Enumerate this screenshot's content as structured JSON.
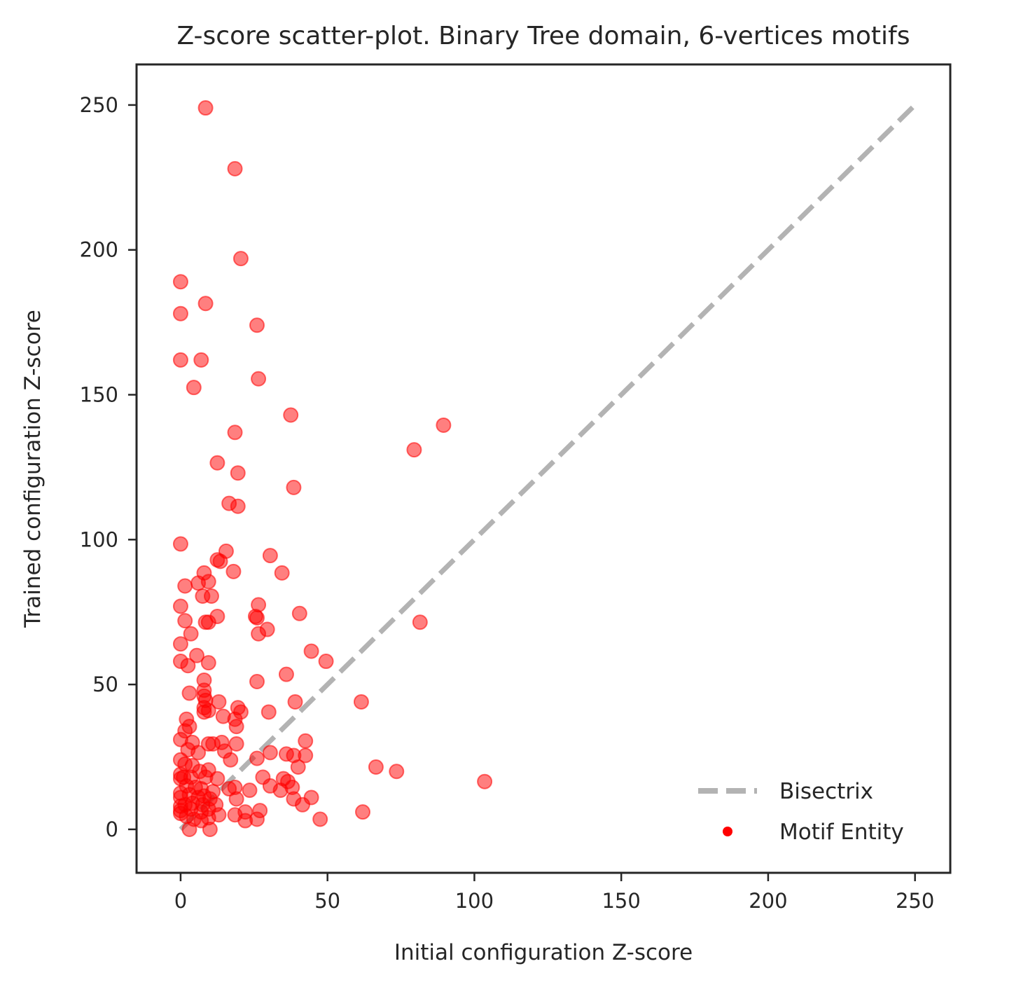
{
  "chart_data": {
    "type": "scatter",
    "title": "Z-score scatter-plot. Binary Tree domain, 6-vertices motifs",
    "xlabel": "Initial configuration Z-score",
    "ylabel": "Trained configuration Z-score",
    "xlim": [
      -15,
      262
    ],
    "ylim": [
      -15,
      264
    ],
    "xticks": [
      0,
      50,
      100,
      150,
      200,
      250
    ],
    "yticks": [
      0,
      50,
      100,
      150,
      200,
      250
    ],
    "grid": false,
    "legend_position": "lower-right",
    "colors": {
      "points": "#ff0000",
      "bisectrix": "#b3b3b3",
      "axes": "#262626"
    },
    "bisectrix": {
      "name": "Bisectrix",
      "x": [
        0,
        250
      ],
      "y": [
        0,
        250
      ],
      "style": "dashed"
    },
    "series": [
      {
        "name": "Motif Entity",
        "points": [
          [
            8.5,
            249
          ],
          [
            18.5,
            228
          ],
          [
            20.5,
            197
          ],
          [
            0,
            189
          ],
          [
            0,
            178
          ],
          [
            8.5,
            181.5
          ],
          [
            26,
            174
          ],
          [
            0,
            162
          ],
          [
            7,
            162
          ],
          [
            4.5,
            152.5
          ],
          [
            26.5,
            155.5
          ],
          [
            37.5,
            143
          ],
          [
            18.5,
            137
          ],
          [
            79.5,
            131
          ],
          [
            89.5,
            139.5
          ],
          [
            12.5,
            126.5
          ],
          [
            19.5,
            123
          ],
          [
            38.5,
            118
          ],
          [
            16.5,
            112.5
          ],
          [
            19.5,
            111.5
          ],
          [
            0,
            98.5
          ],
          [
            15.5,
            96
          ],
          [
            12.5,
            93
          ],
          [
            13.5,
            92.5
          ],
          [
            30.5,
            94.5
          ],
          [
            8,
            88.5
          ],
          [
            18,
            89
          ],
          [
            34.5,
            88.5
          ],
          [
            1.5,
            84
          ],
          [
            6,
            85
          ],
          [
            9.5,
            85.5
          ],
          [
            7.5,
            80.5
          ],
          [
            10.5,
            80.5
          ],
          [
            0,
            77
          ],
          [
            26.5,
            77.5
          ],
          [
            40.5,
            74.5
          ],
          [
            81.5,
            71.5
          ],
          [
            1.5,
            72
          ],
          [
            8.5,
            71.5
          ],
          [
            9.5,
            71.5
          ],
          [
            12.5,
            73.5
          ],
          [
            26,
            73
          ],
          [
            25.5,
            73.5
          ],
          [
            3.5,
            67.5
          ],
          [
            26.5,
            67.5
          ],
          [
            29.5,
            69
          ],
          [
            0,
            64
          ],
          [
            44.5,
            61.5
          ],
          [
            0,
            58
          ],
          [
            5.5,
            60
          ],
          [
            2.5,
            56.5
          ],
          [
            9.5,
            57.5
          ],
          [
            49.5,
            58
          ],
          [
            36,
            53.5
          ],
          [
            8,
            51.5
          ],
          [
            26,
            51
          ],
          [
            3,
            47
          ],
          [
            8,
            48
          ],
          [
            8,
            46
          ],
          [
            8.5,
            44.5
          ],
          [
            13,
            44
          ],
          [
            19.5,
            42
          ],
          [
            39,
            44
          ],
          [
            61.5,
            44
          ],
          [
            8,
            42
          ],
          [
            8,
            40.5
          ],
          [
            9.5,
            41
          ],
          [
            20.5,
            40.5
          ],
          [
            30,
            40.5
          ],
          [
            2,
            38
          ],
          [
            14.5,
            39
          ],
          [
            18.5,
            38
          ],
          [
            3,
            35.5
          ],
          [
            1.5,
            34
          ],
          [
            19,
            35.5
          ],
          [
            0,
            31
          ],
          [
            4,
            30
          ],
          [
            9.5,
            29.5
          ],
          [
            11,
            29.5
          ],
          [
            14,
            30
          ],
          [
            19,
            29.5
          ],
          [
            42.5,
            30.5
          ],
          [
            2.5,
            27.5
          ],
          [
            6,
            26.5
          ],
          [
            15,
            27
          ],
          [
            30.5,
            26.5
          ],
          [
            17,
            24
          ],
          [
            26,
            24.5
          ],
          [
            36,
            26
          ],
          [
            38.5,
            25.5
          ],
          [
            42.5,
            25.5
          ],
          [
            0,
            24
          ],
          [
            1.5,
            22.5
          ],
          [
            4,
            22
          ],
          [
            6.5,
            20
          ],
          [
            9.5,
            20.5
          ],
          [
            66.5,
            21.5
          ],
          [
            73.5,
            20
          ],
          [
            40,
            21.5
          ],
          [
            0,
            19
          ],
          [
            0,
            17.5
          ],
          [
            1,
            18
          ],
          [
            3.5,
            18
          ],
          [
            8.5,
            18
          ],
          [
            12.5,
            17.5
          ],
          [
            28,
            18
          ],
          [
            35,
            17.5
          ],
          [
            36.5,
            16.5
          ],
          [
            103.5,
            16.5
          ],
          [
            2,
            15
          ],
          [
            5,
            14.5
          ],
          [
            7,
            14
          ],
          [
            11,
            13
          ],
          [
            16.5,
            14
          ],
          [
            18.5,
            14.5
          ],
          [
            30.5,
            15
          ],
          [
            34,
            13.5
          ],
          [
            38,
            14.5
          ],
          [
            0,
            12.5
          ],
          [
            0,
            11
          ],
          [
            3,
            12
          ],
          [
            6,
            11
          ],
          [
            8,
            11.5
          ],
          [
            10,
            10.5
          ],
          [
            19,
            10.5
          ],
          [
            38.5,
            10.5
          ],
          [
            44.5,
            11
          ],
          [
            0,
            8
          ],
          [
            1.5,
            8.5
          ],
          [
            4,
            9
          ],
          [
            7.5,
            8.5
          ],
          [
            12,
            8.5
          ],
          [
            23.5,
            13.5
          ],
          [
            41.5,
            8.5
          ],
          [
            0,
            6.5
          ],
          [
            0,
            5.5
          ],
          [
            3.5,
            7
          ],
          [
            7,
            6
          ],
          [
            9.5,
            7
          ],
          [
            18.5,
            5
          ],
          [
            22,
            6
          ],
          [
            27,
            6.5
          ],
          [
            62,
            6
          ],
          [
            2,
            4.5
          ],
          [
            4.5,
            3.5
          ],
          [
            7,
            3
          ],
          [
            9.5,
            4
          ],
          [
            13,
            5
          ],
          [
            22,
            3
          ],
          [
            26,
            3.5
          ],
          [
            47.5,
            3.5
          ],
          [
            3,
            0
          ],
          [
            10,
            0
          ]
        ]
      }
    ]
  }
}
